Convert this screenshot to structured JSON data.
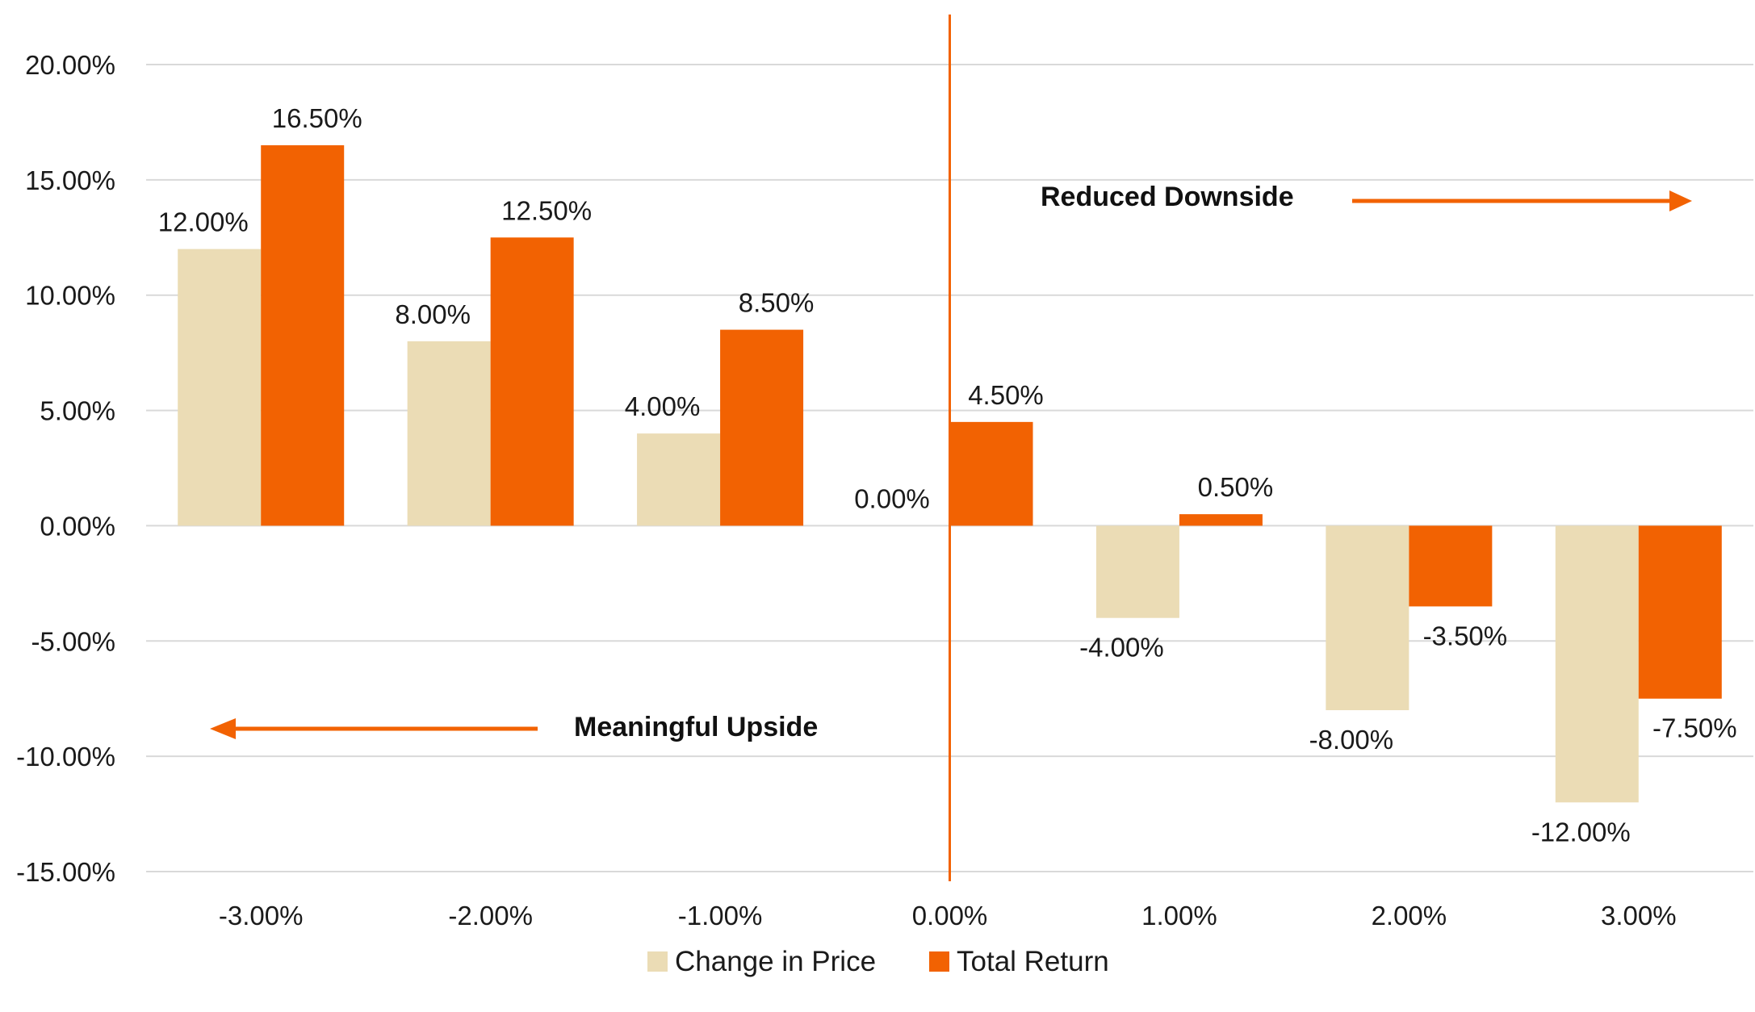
{
  "chart_data": {
    "type": "bar",
    "categories": [
      "-3.00%",
      "-2.00%",
      "-1.00%",
      "0.00%",
      "1.00%",
      "2.00%",
      "3.00%"
    ],
    "series": [
      {
        "name": "Change in Price",
        "color": "#ebdcb5",
        "values": [
          12.0,
          8.0,
          4.0,
          0.0,
          -4.0,
          -8.0,
          -12.0
        ],
        "labels": [
          "12.00%",
          "8.00%",
          "4.00%",
          "0.00%",
          "-4.00%",
          "-8.00%",
          "-12.00%"
        ]
      },
      {
        "name": "Total Return",
        "color": "#f26202",
        "values": [
          16.5,
          12.5,
          8.5,
          4.5,
          0.5,
          -3.5,
          -7.5
        ],
        "labels": [
          "16.50%",
          "12.50%",
          "8.50%",
          "4.50%",
          "0.50%",
          "-3.50%",
          "-7.50%"
        ]
      }
    ],
    "ylim": [
      -15,
      20
    ],
    "y_ticks": [
      20,
      15,
      10,
      5,
      0,
      -5,
      -10,
      -15
    ],
    "y_tick_labels": [
      "20.00%",
      "15.00%",
      "10.00%",
      "5.00%",
      "0.00%",
      "-5.00%",
      "-10.00%",
      "-15.00%"
    ],
    "grid": true,
    "legend": "bottom-center",
    "annotations": [
      {
        "text": "Reduced Downside",
        "arrow": "right"
      },
      {
        "text": "Meaningful Upside",
        "arrow": "left"
      }
    ],
    "divider_at_category": "0.00%",
    "accent_color": "#f26202",
    "grid_color": "#d9d9d9"
  }
}
